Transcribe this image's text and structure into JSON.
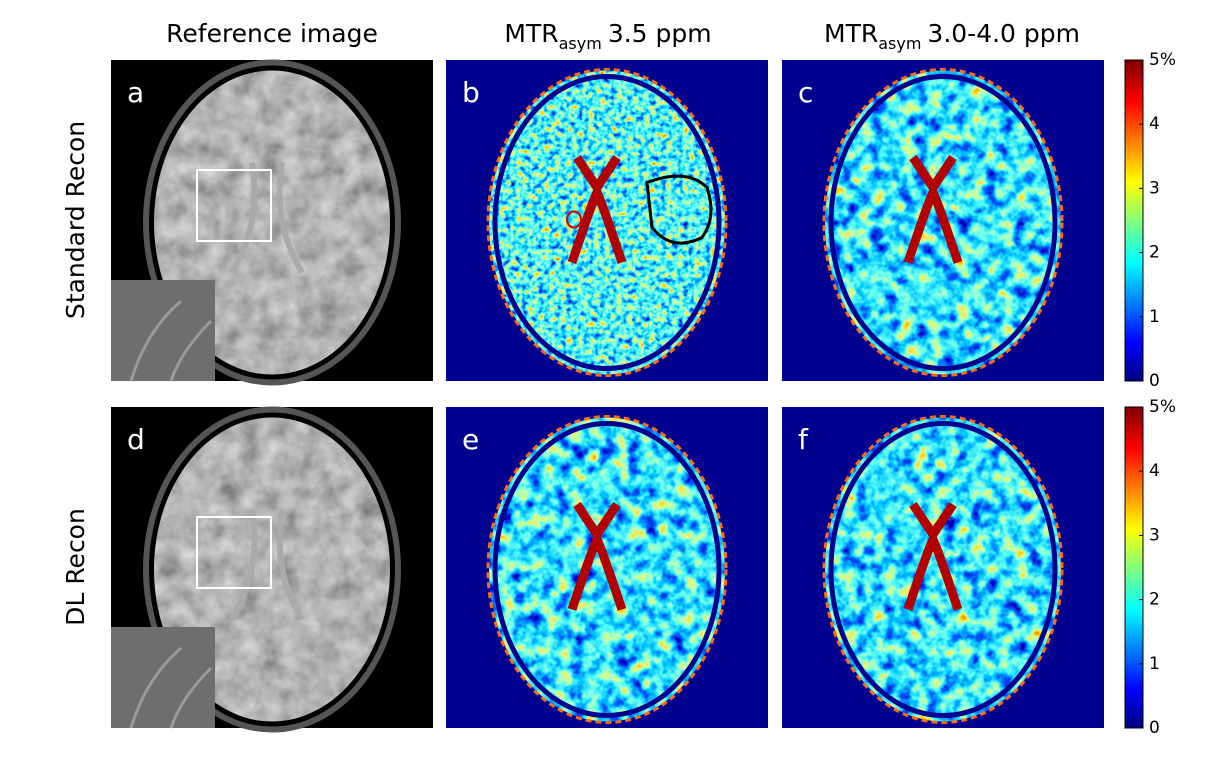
{
  "column_titles": [
    "Reference image",
    {
      "main": "MTR",
      "sub": "asym",
      "rest": "3.5 ppm"
    },
    {
      "main": "MTR",
      "sub": "asym",
      "rest": "3.0-4.0 ppm"
    }
  ],
  "row_labels": [
    "Standard Recon",
    "DL Recon"
  ],
  "panel_letters": [
    "a",
    "b",
    "c",
    "d",
    "e",
    "f"
  ],
  "colorbars": [
    {
      "ticks": [
        0,
        1,
        2,
        3,
        4,
        {
          "value": 5,
          "label": "5%"
        }
      ]
    },
    {
      "ticks": [
        0,
        1,
        2,
        3,
        4,
        {
          "value": 5,
          "label": "5%"
        }
      ]
    }
  ]
}
